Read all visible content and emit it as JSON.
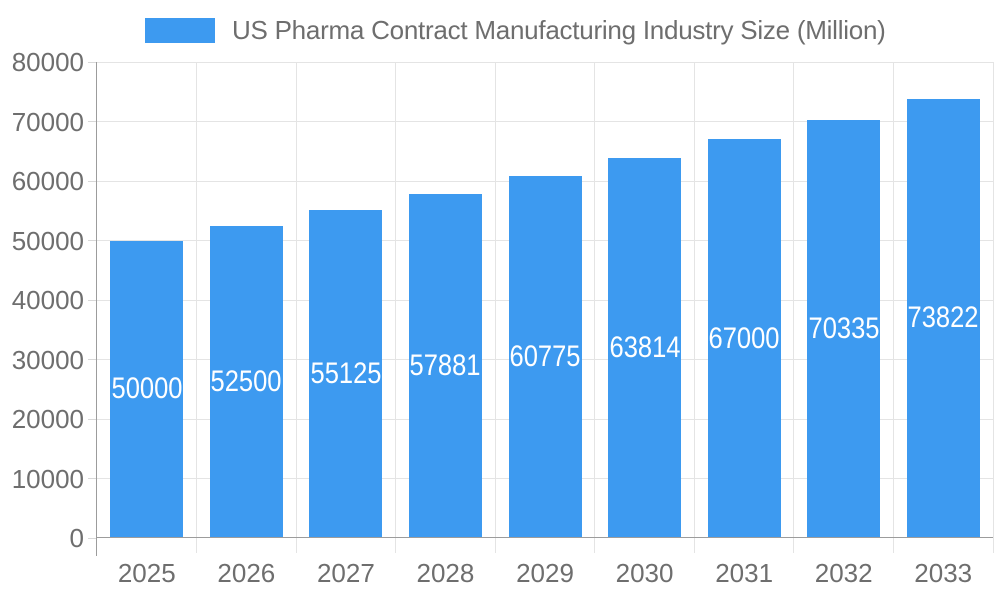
{
  "chart_data": {
    "type": "bar",
    "title": "US Pharma Contract Manufacturing Industry Size (Million)",
    "categories": [
      "2025",
      "2026",
      "2027",
      "2028",
      "2029",
      "2030",
      "2031",
      "2032",
      "2033"
    ],
    "values": [
      50000,
      52500,
      55125,
      57881,
      60775,
      63814,
      67000,
      70335,
      73822
    ],
    "bar_labels": [
      "50000",
      "52500",
      "55125",
      "57881",
      "60775",
      "63814",
      "67000",
      "70335",
      "73822"
    ],
    "xlabel": "",
    "ylabel": "",
    "ylim": [
      0,
      80000
    ],
    "y_tick_step": 10000,
    "y_ticks": [
      "0",
      "10000",
      "20000",
      "30000",
      "40000",
      "50000",
      "60000",
      "70000",
      "80000"
    ],
    "grid": true,
    "legend_position": "top",
    "value_labels_position": "inside-center",
    "colors": {
      "bar": "#3D9AF0",
      "grid": "#E4E4E4",
      "tick": "#D8D8D8",
      "axis": "#9C9C9C",
      "label_text": "#6E6E6E",
      "value_label_text": "#FFFFFF",
      "background": "#FFFFFF"
    }
  }
}
